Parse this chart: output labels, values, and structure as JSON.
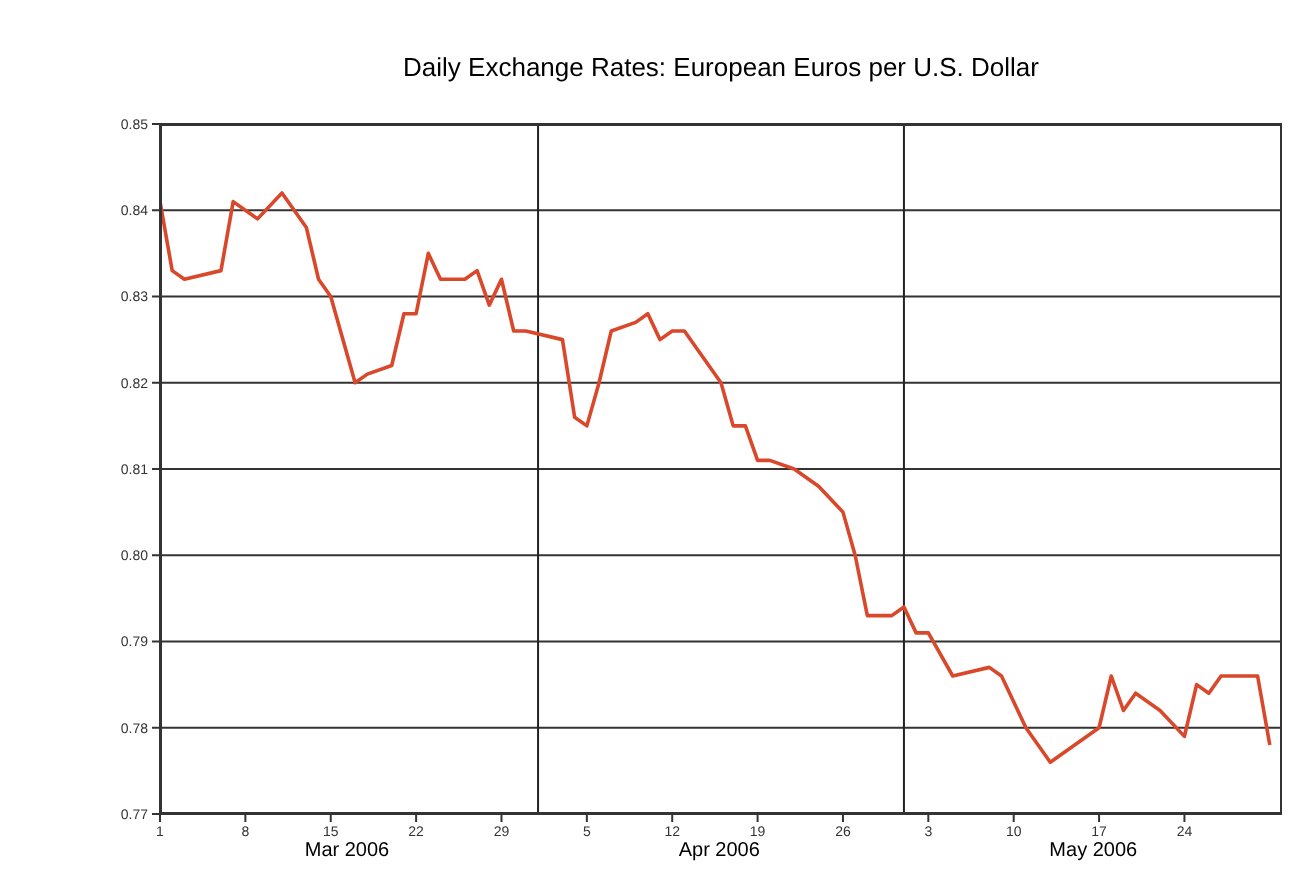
{
  "chart_data": {
    "type": "line",
    "title": "Daily Exchange Rates: European Euros per U.S. Dollar",
    "x": [
      "2006-03-01",
      "2006-03-02",
      "2006-03-03",
      "2006-03-06",
      "2006-03-07",
      "2006-03-09",
      "2006-03-11",
      "2006-03-13",
      "2006-03-14",
      "2006-03-15",
      "2006-03-17",
      "2006-03-18",
      "2006-03-20",
      "2006-03-21",
      "2006-03-22",
      "2006-03-23",
      "2006-03-24",
      "2006-03-26",
      "2006-03-27",
      "2006-03-28",
      "2006-03-29",
      "2006-03-30",
      "2006-03-31",
      "2006-04-03",
      "2006-04-04",
      "2006-04-05",
      "2006-04-06",
      "2006-04-07",
      "2006-04-09",
      "2006-04-10",
      "2006-04-11",
      "2006-04-12",
      "2006-04-13",
      "2006-04-16",
      "2006-04-17",
      "2006-04-18",
      "2006-04-19",
      "2006-04-20",
      "2006-04-22",
      "2006-04-24",
      "2006-04-26",
      "2006-04-27",
      "2006-04-28",
      "2006-04-30",
      "2006-05-01",
      "2006-05-02",
      "2006-05-03",
      "2006-05-05",
      "2006-05-08",
      "2006-05-09",
      "2006-05-11",
      "2006-05-13",
      "2006-05-15",
      "2006-05-17",
      "2006-05-18",
      "2006-05-19",
      "2006-05-20",
      "2006-05-22",
      "2006-05-24",
      "2006-05-25",
      "2006-05-26",
      "2006-05-27",
      "2006-05-30",
      "2006-05-31"
    ],
    "series": [
      {
        "color": "#d9482b",
        "values": [
          0.841,
          0.833,
          0.832,
          0.833,
          0.841,
          0.839,
          0.842,
          0.838,
          0.832,
          0.83,
          0.82,
          0.821,
          0.822,
          0.828,
          0.828,
          0.835,
          0.832,
          0.832,
          0.833,
          0.829,
          0.832,
          0.826,
          0.826,
          0.825,
          0.816,
          0.815,
          0.82,
          0.826,
          0.827,
          0.828,
          0.825,
          0.826,
          0.826,
          0.82,
          0.815,
          0.815,
          0.811,
          0.811,
          0.81,
          0.808,
          0.805,
          0.8,
          0.793,
          0.793,
          0.794,
          0.791,
          0.791,
          0.786,
          0.787,
          0.786,
          0.78,
          0.776,
          0.778,
          0.78,
          0.786,
          0.782,
          0.784,
          0.782,
          0.779,
          0.785,
          0.784,
          0.786,
          0.786,
          0.778
        ]
      }
    ],
    "xlim": [
      "2006-03-01",
      "2006-06-01"
    ],
    "xticks": [
      {
        "value": "2006-03-01",
        "label": "1"
      },
      {
        "value": "2006-03-08",
        "label": "8"
      },
      {
        "value": "2006-03-15",
        "label": "15"
      },
      {
        "value": "2006-03-22",
        "label": "22"
      },
      {
        "value": "2006-03-29",
        "label": "29"
      },
      {
        "value": "2006-04-05",
        "label": "5"
      },
      {
        "value": "2006-04-12",
        "label": "12"
      },
      {
        "value": "2006-04-19",
        "label": "19"
      },
      {
        "value": "2006-04-26",
        "label": "26"
      },
      {
        "value": "2006-05-03",
        "label": "3"
      },
      {
        "value": "2006-05-10",
        "label": "10"
      },
      {
        "value": "2006-05-17",
        "label": "17"
      },
      {
        "value": "2006-05-24",
        "label": "24"
      }
    ],
    "ylim": [
      0.77,
      0.85
    ],
    "yticks": [
      0.77,
      0.78,
      0.79,
      {
        "value": 0.8,
        "label": "0.80"
      },
      0.81,
      0.82,
      0.83,
      0.84,
      0.85
    ],
    "annotations": [
      "Mar 2006",
      "Apr 2006",
      "May 2006"
    ],
    "ref_lines": [
      {
        "axis": "x",
        "value": "2006-04-01",
        "color": "#222222"
      },
      {
        "axis": "x",
        "value": "2006-05-01",
        "color": "#222222"
      }
    ],
    "grid": "y",
    "marker": "none",
    "line_style": "solid"
  }
}
